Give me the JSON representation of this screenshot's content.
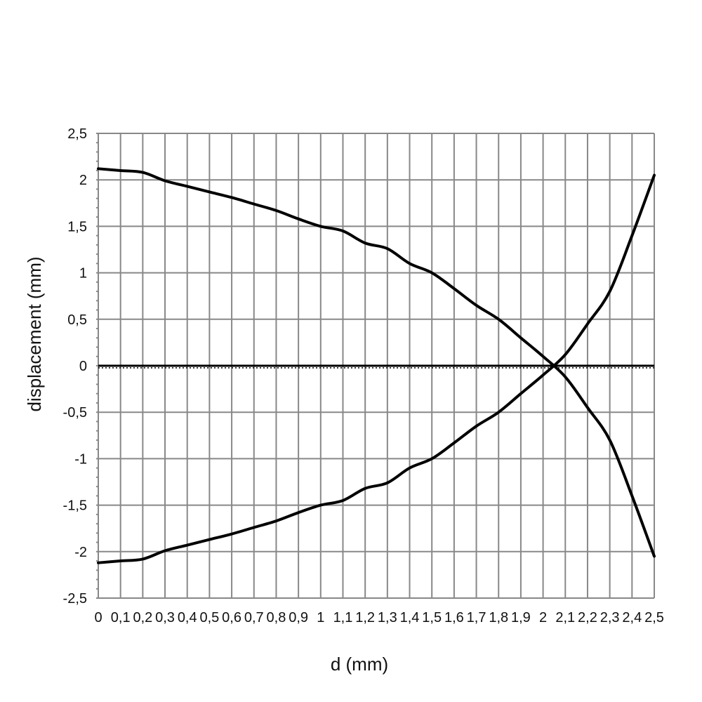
{
  "chart_data": {
    "type": "line",
    "title": "",
    "xlabel": "d (mm)",
    "ylabel": "displacement (mm)",
    "xlim": [
      0,
      2.5
    ],
    "ylim": [
      -2.5,
      2.5
    ],
    "grid": true,
    "legend": "none",
    "x": [
      0,
      0.1,
      0.2,
      0.3,
      0.4,
      0.5,
      0.6,
      0.7,
      0.8,
      0.9,
      1,
      1.1,
      1.2,
      1.3,
      1.4,
      1.5,
      1.6,
      1.7,
      1.8,
      1.9,
      2,
      2.1,
      2.2,
      2.3,
      2.4,
      2.5
    ],
    "x_tick_labels": [
      "0",
      "0,1",
      "0,2",
      "0,3",
      "0,4",
      "0,5",
      "0,6",
      "0,7",
      "0,8",
      "0,9",
      "1",
      "1,1",
      "1,2",
      "1,3",
      "1,4",
      "1,5",
      "1,6",
      "1,7",
      "1,8",
      "1,9",
      "2",
      "2,1",
      "2,2",
      "2,3",
      "2,4",
      "2,5"
    ],
    "y_ticks": [
      2.5,
      2,
      1.5,
      1,
      0.5,
      0,
      -0.5,
      -1,
      -1.5,
      -2,
      -2.5
    ],
    "y_tick_labels": [
      "2,5",
      "2",
      "1,5",
      "1",
      "0,5",
      "0",
      "-0,5",
      "-1",
      "-1,5",
      "-2",
      "-2,5"
    ],
    "series": [
      {
        "values": [
          2.12,
          2.1,
          2.08,
          1.99,
          1.93,
          1.87,
          1.81,
          1.74,
          1.67,
          1.58,
          1.5,
          1.45,
          1.32,
          1.26,
          1.1,
          1.0,
          0.83,
          0.65,
          0.5,
          0.3,
          0.1,
          -0.12,
          -0.45,
          -0.8,
          -1.4,
          -2.05
        ]
      },
      {
        "values": [
          -2.12,
          -2.1,
          -2.08,
          -1.99,
          -1.93,
          -1.87,
          -1.81,
          -1.74,
          -1.67,
          -1.58,
          -1.5,
          -1.45,
          -1.32,
          -1.26,
          -1.1,
          -1.0,
          -0.83,
          -0.65,
          -0.5,
          -0.3,
          -0.1,
          0.12,
          0.45,
          0.8,
          1.4,
          2.05
        ]
      }
    ]
  }
}
